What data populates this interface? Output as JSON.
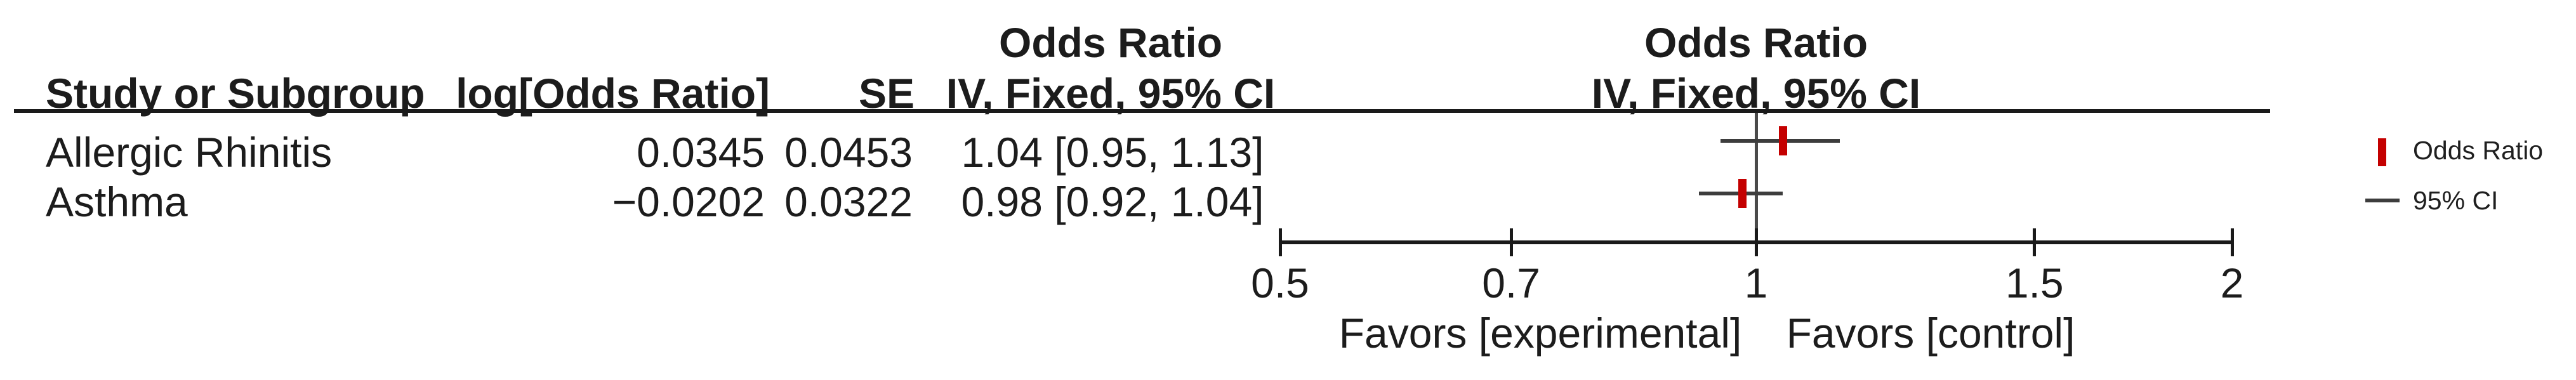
{
  "colors": {
    "marker_red": "#c40000",
    "line_dark": "#1a1a1a",
    "ci_gray": "#3d3d3d"
  },
  "table": {
    "headers": {
      "study": "Study or Subgroup",
      "log_or": "log[Odds Ratio]",
      "se": "SE",
      "or_col_line1": "Odds Ratio",
      "or_col_line2": "IV, Fixed, 95% CI",
      "plot_col_line1": "Odds Ratio",
      "plot_col_line2": "IV, Fixed, 95% CI"
    },
    "rows": [
      {
        "study": "Allergic Rhinitis",
        "log_or": "0.0345",
        "se": "0.0453",
        "ci_text": "1.04 [0.95, 1.13]"
      },
      {
        "study": "Asthma",
        "log_or": "−0.0202",
        "se": "0.0322",
        "ci_text": "0.98 [0.92, 1.04]"
      }
    ]
  },
  "chart_data": {
    "type": "forest-plot",
    "x_scale": "log",
    "axis_range": [
      0.5,
      2
    ],
    "axis_ticks": [
      {
        "value": 0.5,
        "label": "0.5"
      },
      {
        "value": 0.7,
        "label": "0.7"
      },
      {
        "value": 1,
        "label": "1"
      },
      {
        "value": 1.5,
        "label": "1.5"
      },
      {
        "value": 2,
        "label": "2"
      }
    ],
    "center_value": 1,
    "series": [
      {
        "label": "Allergic Rhinitis",
        "odds_ratio": 1.04,
        "ci_low": 0.95,
        "ci_high": 1.13
      },
      {
        "label": "Asthma",
        "odds_ratio": 0.98,
        "ci_low": 0.92,
        "ci_high": 1.04
      }
    ],
    "effect_measure": "Odds Ratio",
    "method": "IV, Fixed, 95% CI",
    "favors_left": "Favors [experimental]",
    "favors_right": "Favors [control]"
  },
  "legend": {
    "item1_label": "Odds Ratio",
    "item2_label": "95% CI"
  }
}
